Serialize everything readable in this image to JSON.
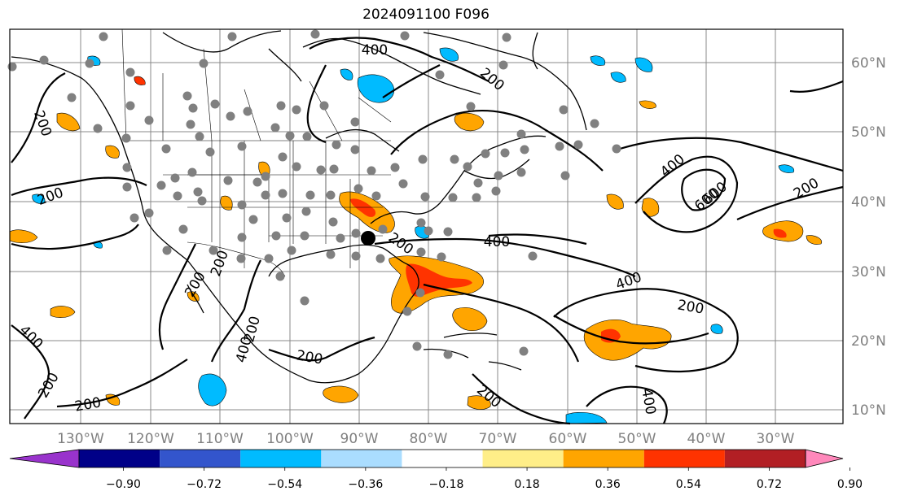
{
  "title": "2024091100 F096",
  "lon_labels": [
    "130°W",
    "120°W",
    "110°W",
    "100°W",
    "90°W",
    "80°W",
    "70°W",
    "60°W",
    "50°W",
    "40°W",
    "30°W"
  ],
  "lat_labels": [
    "60°N",
    "50°N",
    "40°N",
    "30°N",
    "20°N",
    "10°N"
  ],
  "contour_labels": [
    "400",
    "200",
    "200",
    "200",
    "400",
    "200",
    "200",
    "400",
    "200",
    "200",
    "400",
    "400",
    "200",
    "600",
    "600",
    "400",
    "200",
    "400",
    "200",
    "200",
    "200",
    "200"
  ],
  "colorbar": {
    "colors": [
      "#9933cc",
      "#000088",
      "#3355cc",
      "#00bbff",
      "#aaddff",
      "#ffffff",
      "#ffee88",
      "#ffa500",
      "#ff3300",
      "#b21f24",
      "#ff88bb"
    ],
    "tick_labels": [
      "−0.90",
      "−0.72",
      "−0.54",
      "−0.36",
      "−0.18",
      "0.18",
      "0.36",
      "0.54",
      "0.72",
      "0.90"
    ]
  },
  "colors": {
    "positive_fill": "#ffa500",
    "strong_fill": "#ff3300",
    "negative_fill": "#00bbff",
    "marker": "#808080",
    "grid": "#808080"
  }
}
